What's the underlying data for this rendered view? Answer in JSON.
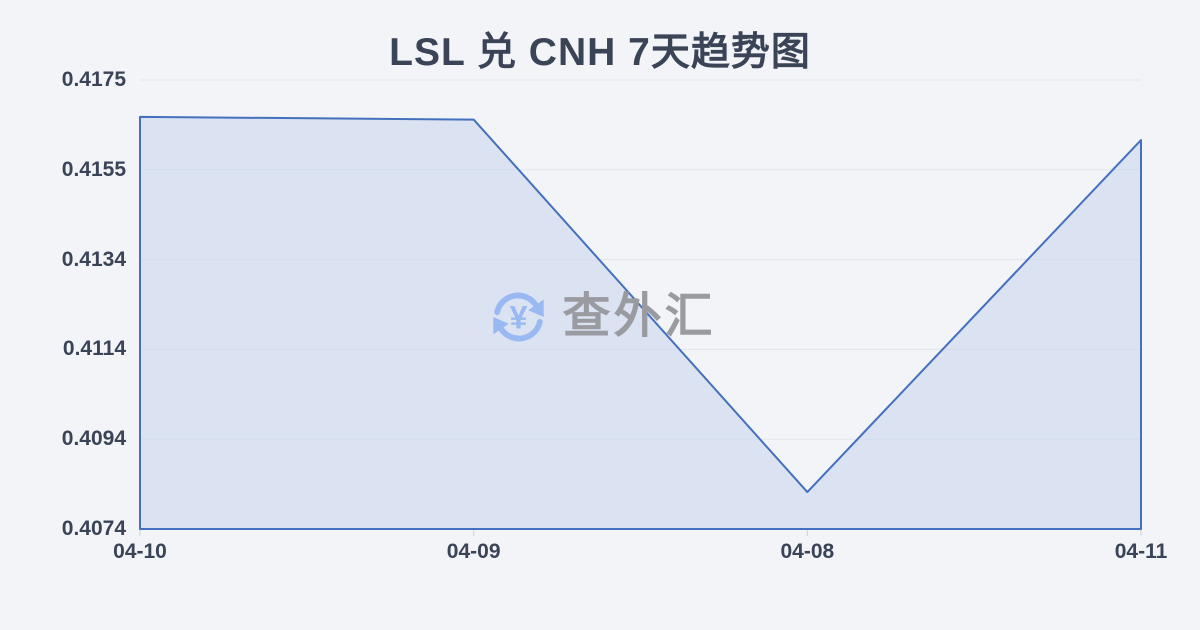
{
  "page": {
    "background": "#f2f4f7"
  },
  "title": {
    "text": "LSL 兑 CNH 7天趋势图",
    "color": "#3b4357"
  },
  "watermark": {
    "text": "查外汇",
    "icon": "currency-exchange-refresh-icon",
    "currency_symbol": "¥",
    "icon_color": "#9ab9f3",
    "text_color": "#9a9aa1"
  },
  "chart_data": {
    "type": "area",
    "title": "LSL 兑 CNH 7天趋势图",
    "series_name": "LSL/CNH",
    "categories": [
      "04-10",
      "04-09",
      "04-08",
      "04-11"
    ],
    "values": [
      0.41667,
      0.41661,
      0.40823,
      0.41615
    ],
    "xlabel": "",
    "ylabel": "",
    "ylim": [
      0.4074,
      0.4175
    ],
    "y_tick_labels": [
      "0.4175",
      "0.4155",
      "0.4134",
      "0.4114",
      "0.4094",
      "0.4074"
    ],
    "grid": true,
    "legend": false,
    "colors": {
      "line": "#4470bd",
      "area_fill": "#c3d2f0",
      "area_fill_opacity": 0.5,
      "grid_line": "#e2e6ec",
      "tick_mark": "#ccd2dc",
      "label": "#3b4357"
    }
  }
}
